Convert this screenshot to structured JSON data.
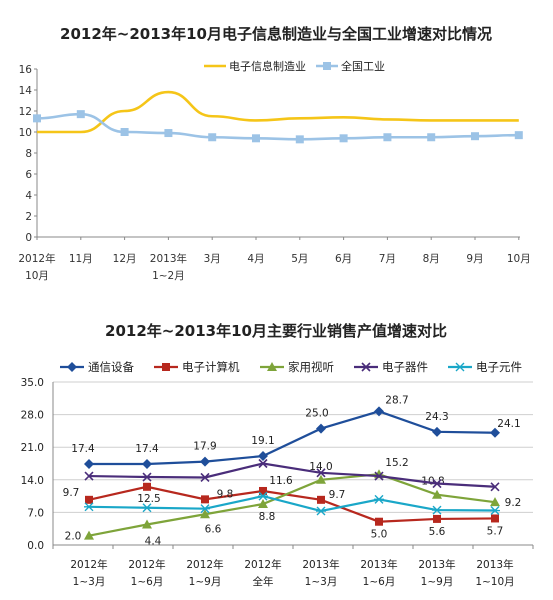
{
  "chart_data": [
    {
      "type": "line",
      "title": "2012年~2013年10月电子信息制造业与全国工业增速对比情况",
      "categories": [
        "2012年\n10月",
        "11月",
        "12月",
        "2013年\n1~2月",
        "3月",
        "4月",
        "5月",
        "6月",
        "7月",
        "8月",
        "9月",
        "10月"
      ],
      "y_ticks": [
        "0",
        "2",
        "4",
        "6",
        "8",
        "10",
        "12",
        "14",
        "16"
      ],
      "ylim": [
        0,
        16
      ],
      "grid": false,
      "legend_position": "top-right",
      "series": [
        {
          "name": "电子信息制造业",
          "color": "#f5c518",
          "marker": "none",
          "values": [
            10.0,
            10.0,
            12.0,
            13.8,
            11.5,
            11.1,
            11.3,
            11.4,
            11.2,
            11.1,
            11.1,
            11.1
          ]
        },
        {
          "name": "全国工业",
          "color": "#9cc3e6",
          "marker": "square",
          "values": [
            11.3,
            11.7,
            10.0,
            9.9,
            9.5,
            9.4,
            9.3,
            9.4,
            9.5,
            9.5,
            9.6,
            9.7
          ]
        }
      ]
    },
    {
      "type": "line",
      "title": "2012年~2013年10月主要行业销售产值增速对比",
      "categories": [
        "2012年\n1~3月",
        "2012年\n1~6月",
        "2012年\n1~9月",
        "2012年\n全年",
        "2013年\n1~3月",
        "2013年\n1~6月",
        "2013年\n1~9月",
        "2013年\n1~10月"
      ],
      "y_ticks": [
        "0.0",
        "7.0",
        "14.0",
        "21.0",
        "28.0",
        "35.0"
      ],
      "ylim": [
        0,
        35
      ],
      "grid": true,
      "legend_position": "top",
      "series": [
        {
          "name": "通信设备",
          "color": "#1f4e9a",
          "marker": "diamond",
          "values": [
            17.4,
            17.4,
            17.9,
            19.1,
            25.0,
            28.7,
            24.3,
            24.1
          ],
          "labels": [
            "17.4",
            "17.4",
            "17.9",
            "19.1",
            "25.0",
            "28.7",
            "24.3",
            "24.1"
          ]
        },
        {
          "name": "电子计算机",
          "color": "#b7281e",
          "marker": "square",
          "values": [
            9.7,
            12.5,
            9.8,
            11.6,
            9.7,
            5.0,
            5.6,
            5.7
          ],
          "labels": [
            "9.7",
            "12.5",
            "9.8",
            "11.6",
            "9.7",
            "5.0",
            "5.6",
            "5.7"
          ]
        },
        {
          "name": "家用视听",
          "color": "#7ea43a",
          "marker": "triangle",
          "values": [
            2.0,
            4.4,
            6.6,
            8.8,
            14.0,
            15.2,
            10.8,
            9.2
          ],
          "labels": [
            "2.0",
            "4.4",
            "6.6",
            "8.8",
            "14.0",
            "15.2",
            "10.8",
            "9.2"
          ]
        },
        {
          "name": "电子器件",
          "color": "#4a2d7a",
          "marker": "x",
          "values": [
            14.8,
            14.6,
            14.5,
            17.5,
            15.5,
            14.8,
            13.2,
            12.5
          ]
        },
        {
          "name": "电子元件",
          "color": "#1aa7c8",
          "marker": "star",
          "values": [
            8.2,
            8.0,
            7.8,
            10.5,
            7.3,
            9.8,
            7.5,
            7.4
          ]
        }
      ]
    }
  ]
}
